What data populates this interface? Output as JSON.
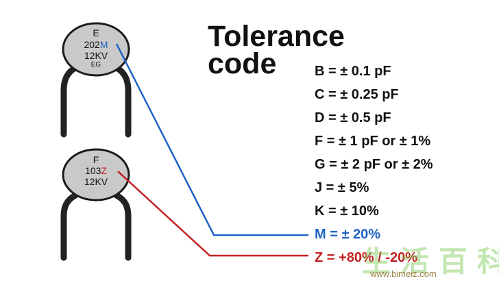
{
  "title": {
    "line1": "Tolerance",
    "line2": "code"
  },
  "capacitors": [
    {
      "line1": "E",
      "line2_prefix": "202",
      "line2_code": "M",
      "line3": "12KV",
      "line4": "EG",
      "code_color": "#1e63c4"
    },
    {
      "line1": "F",
      "line2_prefix": "103",
      "line2_code": "Z",
      "line3": "12KV",
      "code_color": "#c42020"
    }
  ],
  "codes": [
    {
      "label": "B = ± 0.1 pF",
      "color": "#111111"
    },
    {
      "label": "C = ± 0.25 pF",
      "color": "#111111"
    },
    {
      "label": "D = ± 0.5 pF",
      "color": "#111111"
    },
    {
      "label": "F = ± 1 pF or ± 1%",
      "color": "#111111"
    },
    {
      "label": "G = ± 2 pF or ± 2%",
      "color": "#111111"
    },
    {
      "label": "J = ± 5%",
      "color": "#111111"
    },
    {
      "label": "K = ± 10%",
      "color": "#111111"
    },
    {
      "label": "M = ± 20%",
      "color": "#1e63c4"
    },
    {
      "label": "Z = +80% / -20%",
      "color": "#c42020"
    }
  ],
  "watermark": {
    "text": "生活百科",
    "url": "www.bimeiz.com"
  }
}
